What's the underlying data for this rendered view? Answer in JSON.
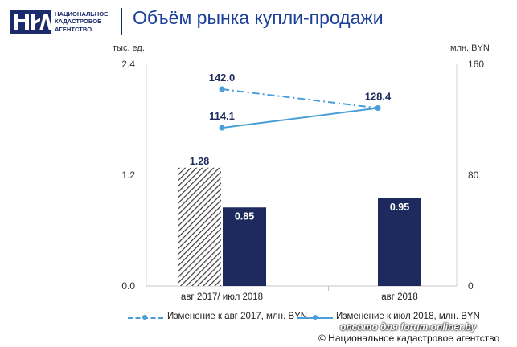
{
  "header": {
    "logo_lines": [
      "НАЦИОНАЛЬНОЕ",
      "КАДАСТРОВОЕ",
      "АГЕНТСТВО"
    ],
    "title": "Объём рынка купли-продажи"
  },
  "chart_data": {
    "type": "bar+line",
    "title": "Объём рынка купли-продажи",
    "left_axis": {
      "unit": "тыс. ед.",
      "range": [
        0,
        2.4
      ],
      "ticks": [
        "0.0",
        "1.2",
        "2.4"
      ]
    },
    "right_axis": {
      "unit": "млн. BYN",
      "range": [
        0,
        160
      ],
      "ticks": [
        "0",
        "80",
        "160"
      ]
    },
    "categories": [
      "авг 2017/ июл 2018",
      "авг 2018"
    ],
    "bars": [
      {
        "name": "авг 2017",
        "category": 0,
        "value": 1.28,
        "label": "1.28",
        "style": "hatched"
      },
      {
        "name": "июл 2018",
        "category": 0,
        "value": 0.85,
        "label": "0.85",
        "style": "solid"
      },
      {
        "name": "авг 2018",
        "category": 1,
        "value": 0.95,
        "label": "0.95",
        "style": "solid"
      }
    ],
    "series": [
      {
        "name": "Изменение к авг 2017, млн. BYN",
        "style": "dash-dot",
        "points": [
          142.0,
          128.4
        ],
        "labels": [
          "142.0",
          "128.4"
        ]
      },
      {
        "name": "Изменение к июл 2018, млн. BYN",
        "style": "solid",
        "points": [
          114.1,
          128.4
        ],
        "labels": [
          "114.1",
          ""
        ]
      }
    ],
    "colors": {
      "bar": "#1e2a5e",
      "line": "#4a9fd8",
      "text": "#1e2a5e"
    }
  },
  "footer": {
    "watermark": "oncomo для forum.onliner.by",
    "copyright": "© Национальное кадастровое агентство"
  }
}
